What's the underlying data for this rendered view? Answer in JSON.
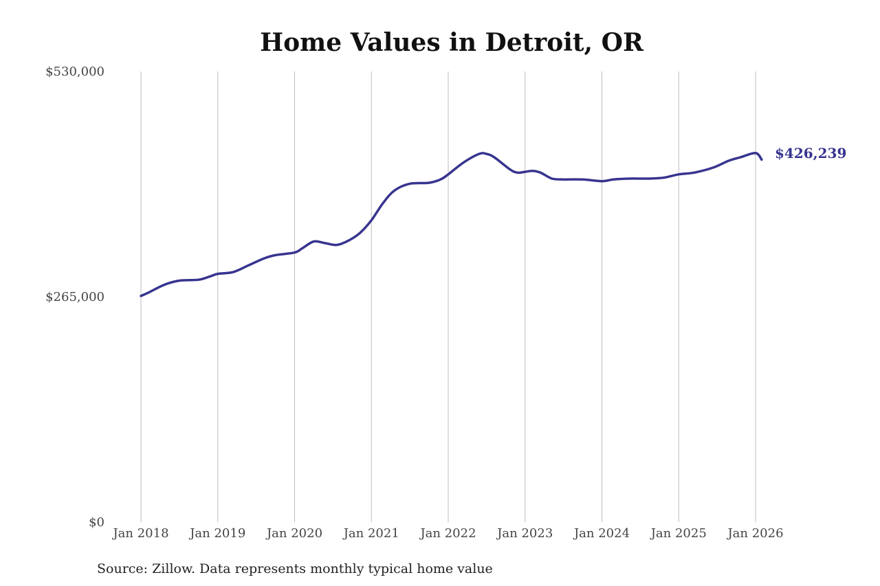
{
  "chart_data": {
    "type": "line",
    "title": "Home Values in Detroit, OR",
    "source": "Source: Zillow. Data represents monthly typical home value",
    "ylim": [
      0,
      530000
    ],
    "y_ticks": [
      0,
      265000,
      530000
    ],
    "y_tick_labels": [
      "$0",
      "$265,000",
      "$530,000"
    ],
    "x_range": [
      2018.0,
      2026.083
    ],
    "x_ticks": [
      2018,
      2019,
      2020,
      2021,
      2022,
      2023,
      2024,
      2025,
      2026
    ],
    "x_tick_labels": [
      "Jan 2018",
      "Jan 2019",
      "Jan 2020",
      "Jan 2021",
      "Jan 2022",
      "Jan 2023",
      "Jan 2024",
      "Jan 2025",
      "Jan 2026"
    ],
    "grid": "vertical",
    "line_color": "#37348f",
    "end_label": "$426,239",
    "series": [
      {
        "x": [
          2018.0,
          2018.1,
          2018.3,
          2018.5,
          2018.75,
          2018.9,
          2019.0,
          2019.2,
          2019.4,
          2019.6,
          2019.75,
          2020.0,
          2020.1,
          2020.25,
          2020.4,
          2020.55,
          2020.7,
          2020.85,
          2021.0,
          2021.15,
          2021.3,
          2021.5,
          2021.75,
          2021.9,
          2022.0,
          2022.2,
          2022.4,
          2022.5,
          2022.6,
          2022.8,
          2022.9,
          2023.0,
          2023.1,
          2023.2,
          2023.35,
          2023.5,
          2023.75,
          2024.0,
          2024.15,
          2024.35,
          2024.6,
          2024.8,
          2025.0,
          2025.2,
          2025.45,
          2025.65,
          2025.8,
          2026.0,
          2026.08
        ],
        "y": [
          266000,
          270000,
          279000,
          284000,
          285000,
          289000,
          292000,
          294000,
          302000,
          310000,
          314000,
          317000,
          322000,
          330000,
          328000,
          326000,
          331000,
          340000,
          355000,
          375000,
          390000,
          398000,
          399000,
          403000,
          409000,
          423000,
          433000,
          433000,
          429000,
          415000,
          411000,
          412000,
          413000,
          411000,
          404000,
          403000,
          403000,
          401000,
          403000,
          404000,
          404000,
          405000,
          409000,
          411000,
          417000,
          425000,
          429000,
          434000,
          426239
        ]
      }
    ]
  }
}
